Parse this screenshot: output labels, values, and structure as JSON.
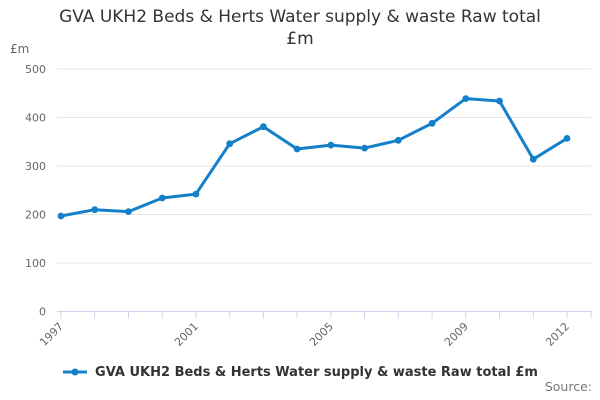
{
  "title": {
    "text": "GVA UKH2 Beds & Herts Water supply & waste Raw total £m",
    "line1": "GVA UKH2 Beds & Herts Water supply & waste Raw total",
    "line2": "£m"
  },
  "y_axis_title": "£m",
  "legend": {
    "label": "GVA UKH2 Beds & Herts Water supply & waste Raw total £m"
  },
  "source_label": "Source:",
  "colors": {
    "line": "#1380C9",
    "grid": "#E6E6E6",
    "axis": "#CCD6EB",
    "muted_text": "#666666",
    "title_text": "#333333",
    "legend_text": "#333333",
    "source_text": "#777777"
  },
  "chart_data": {
    "type": "line",
    "title": "GVA UKH2 Beds & Herts Water supply & waste Raw total £m",
    "x": [
      1997,
      1998,
      1999,
      2000,
      2001,
      2002,
      2003,
      2004,
      2005,
      2006,
      2007,
      2008,
      2009,
      2010,
      2011,
      2012
    ],
    "series": [
      {
        "name": "GVA UKH2 Beds & Herts Water supply & waste Raw total £m",
        "values": [
          197,
          210,
          206,
          234,
          242,
          346,
          381,
          335,
          343,
          337,
          353,
          388,
          439,
          434,
          314,
          357
        ]
      }
    ],
    "xlabel": "",
    "ylabel": "£m",
    "ylim": [
      0,
      500
    ],
    "yticks": [
      0,
      100,
      200,
      300,
      400,
      500
    ],
    "xtick_labels": [
      "1997",
      "2001",
      "2005",
      "2009",
      "2012"
    ],
    "grid": true,
    "legend_position": "bottom",
    "marker": "circle"
  }
}
